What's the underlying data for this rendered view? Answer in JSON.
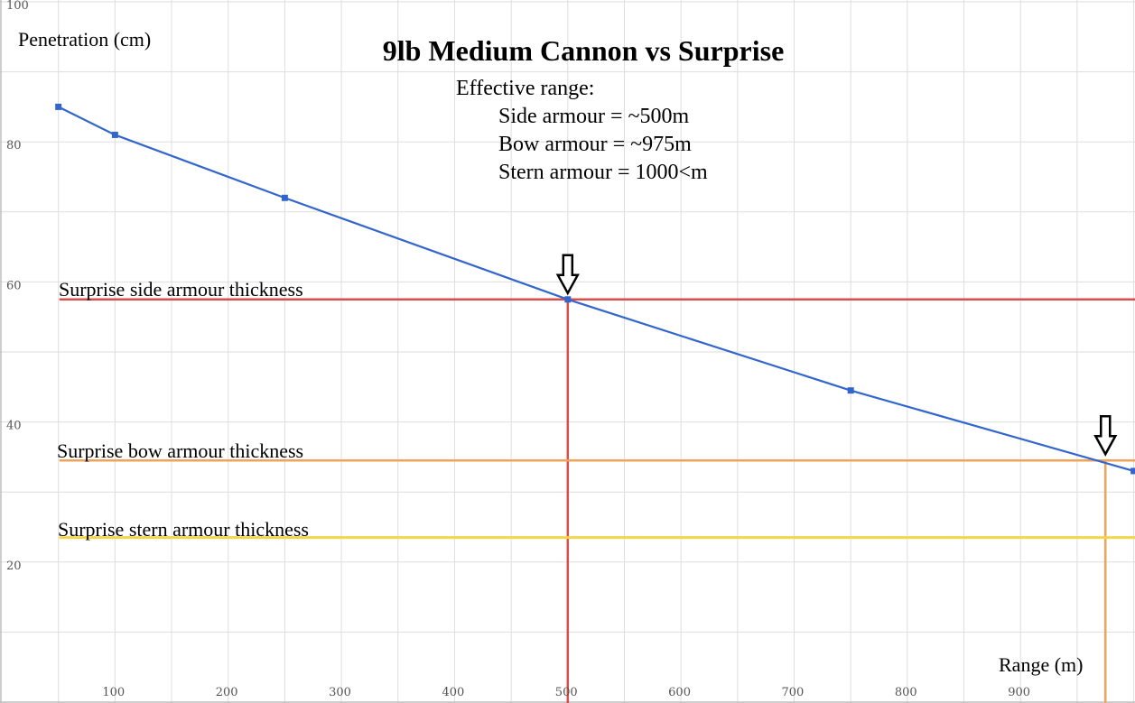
{
  "chart_data": {
    "type": "line",
    "title": "9lb Medium Cannon vs Surprise",
    "ylabel": "Penetration (cm)",
    "xlabel": "Range (m)",
    "xlim": [
      0,
      1000
    ],
    "ylim": [
      0,
      100
    ],
    "x_ticks": [
      100,
      200,
      300,
      400,
      500,
      600,
      700,
      800,
      900
    ],
    "y_ticks": [
      20,
      40,
      60,
      80,
      100
    ],
    "grid": true,
    "series": [
      {
        "name": "Penetration",
        "color": "#3366cc",
        "x": [
          50,
          100,
          250,
          500,
          750,
          1000
        ],
        "y": [
          85,
          81,
          72,
          57.5,
          44.5,
          33
        ]
      }
    ],
    "thresholds": [
      {
        "name": "Surprise side armour thickness",
        "value": 57.5,
        "color": "#dd4b4b",
        "x_from": 50,
        "effective_range": 500
      },
      {
        "name": "Surprise bow armour thickness",
        "value": 34.5,
        "color": "#f2a35a",
        "x_from": 50,
        "effective_range": 975
      },
      {
        "name": "Surprise stern armour thickness",
        "value": 23.5,
        "color": "#f5d54a",
        "x_from": 50
      }
    ],
    "annotation": {
      "heading": "Effective range:",
      "lines": [
        "Side armour = ~500m",
        "Bow armour = ~975m",
        "Stern armour = 1000<m"
      ]
    }
  }
}
